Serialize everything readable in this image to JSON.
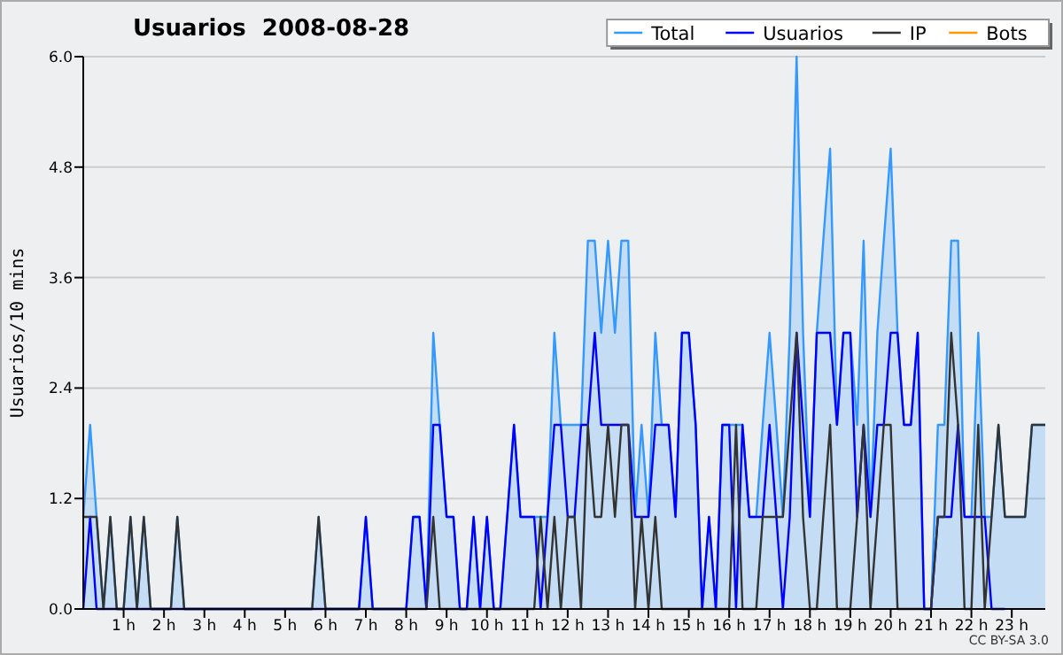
{
  "chart_data": {
    "type": "line",
    "title": "Usuarios  2008-08-28",
    "ylabel": "Usuarios/10 mins",
    "annotations": [
      "CC BY-SA 3.0"
    ],
    "x": [
      0,
      0.17,
      0.33,
      0.5,
      0.67,
      0.83,
      1,
      1.17,
      1.33,
      1.5,
      1.67,
      1.83,
      2,
      2.17,
      2.33,
      2.5,
      2.67,
      2.83,
      3,
      3.17,
      3.33,
      3.5,
      3.67,
      3.83,
      4,
      4.17,
      4.33,
      4.5,
      4.67,
      4.83,
      5,
      5.17,
      5.33,
      5.5,
      5.67,
      5.83,
      6,
      6.17,
      6.33,
      6.5,
      6.67,
      6.83,
      7,
      7.17,
      7.33,
      7.5,
      7.67,
      7.83,
      8,
      8.17,
      8.33,
      8.5,
      8.67,
      8.83,
      9,
      9.17,
      9.33,
      9.5,
      9.67,
      9.83,
      10,
      10.17,
      10.33,
      10.5,
      10.67,
      10.83,
      11,
      11.17,
      11.33,
      11.5,
      11.67,
      11.83,
      12,
      12.17,
      12.33,
      12.5,
      12.67,
      12.83,
      13,
      13.17,
      13.33,
      13.5,
      13.67,
      13.83,
      14,
      14.17,
      14.33,
      14.5,
      14.67,
      14.83,
      15,
      15.17,
      15.33,
      15.5,
      15.67,
      15.83,
      16,
      16.17,
      16.33,
      16.5,
      16.67,
      16.83,
      17,
      17.17,
      17.33,
      17.5,
      17.67,
      17.83,
      18,
      18.17,
      18.33,
      18.5,
      18.67,
      18.83,
      19,
      19.17,
      19.33,
      19.5,
      19.67,
      19.83,
      20,
      20.17,
      20.33,
      20.5,
      20.67,
      20.83,
      21,
      21.17,
      21.33,
      21.5,
      21.67,
      21.83,
      22,
      22.17,
      22.33,
      22.5,
      22.67,
      22.83,
      23,
      23.17,
      23.33,
      23.5,
      23.67,
      23.83
    ],
    "xlim": [
      0,
      23.83
    ],
    "xticks": [
      {
        "value": 1,
        "label": "1 h"
      },
      {
        "value": 2,
        "label": "2 h"
      },
      {
        "value": 3,
        "label": "3 h"
      },
      {
        "value": 4,
        "label": "4 h"
      },
      {
        "value": 5,
        "label": "5 h"
      },
      {
        "value": 6,
        "label": "6 h"
      },
      {
        "value": 7,
        "label": "7 h"
      },
      {
        "value": 8,
        "label": "8 h"
      },
      {
        "value": 9,
        "label": "9 h"
      },
      {
        "value": 10,
        "label": "10 h"
      },
      {
        "value": 11,
        "label": "11 h"
      },
      {
        "value": 12,
        "label": "12 h"
      },
      {
        "value": 13,
        "label": "13 h"
      },
      {
        "value": 14,
        "label": "14 h"
      },
      {
        "value": 15,
        "label": "15 h"
      },
      {
        "value": 16,
        "label": "16 h"
      },
      {
        "value": 17,
        "label": "17 h"
      },
      {
        "value": 18,
        "label": "18 h"
      },
      {
        "value": 19,
        "label": "19 h"
      },
      {
        "value": 20,
        "label": "20 h"
      },
      {
        "value": 21,
        "label": "21 h"
      },
      {
        "value": 22,
        "label": "22 h"
      },
      {
        "value": 23,
        "label": "23 h"
      }
    ],
    "ylim": [
      0,
      6
    ],
    "yticks": [
      {
        "value": 0,
        "label": "0.0"
      },
      1.2,
      2.4,
      3.6,
      4.8,
      {
        "value": 6,
        "label": "6.0"
      }
    ],
    "grid": "y",
    "legend": "top right",
    "marker": "none",
    "line_style": "solid",
    "series": [
      {
        "name": "Total",
        "type": "area",
        "color": "#3399ff",
        "values": [
          1,
          2,
          1,
          0,
          1,
          0,
          0,
          1,
          0,
          1,
          0,
          0,
          0,
          0,
          1,
          0,
          0,
          0,
          0,
          0,
          0,
          0,
          0,
          0,
          0,
          0,
          0,
          0,
          0,
          0,
          0,
          0,
          0,
          0,
          0,
          1,
          0,
          0,
          0,
          0,
          0,
          0,
          1,
          0,
          0,
          0,
          0,
          0,
          0,
          1,
          1,
          0,
          3,
          2,
          1,
          1,
          0,
          0,
          1,
          0,
          1,
          0,
          0,
          1,
          2,
          1,
          1,
          1,
          1,
          1,
          3,
          2,
          2,
          2,
          2,
          4,
          4,
          3,
          4,
          3,
          4,
          4,
          1,
          2,
          1,
          3,
          2,
          2,
          1,
          3,
          3,
          2,
          0,
          1,
          0,
          2,
          2,
          2,
          2,
          1,
          1,
          2,
          3,
          2,
          1,
          3,
          6,
          3,
          1,
          3,
          4,
          5,
          2,
          3,
          3,
          2,
          4,
          1,
          3,
          4,
          5,
          3,
          2,
          2,
          3,
          0,
          0,
          2,
          2,
          4,
          4,
          1,
          1,
          3,
          1,
          1,
          2,
          1,
          1,
          1,
          1,
          2,
          2,
          2
        ]
      },
      {
        "name": "Usuarios",
        "color": "#0000ff",
        "values": [
          0,
          1,
          0,
          0,
          0,
          0,
          0,
          0,
          0,
          0,
          0,
          0,
          0,
          0,
          0,
          0,
          0,
          0,
          0,
          0,
          0,
          0,
          0,
          0,
          0,
          0,
          0,
          0,
          0,
          0,
          0,
          0,
          0,
          0,
          0,
          0,
          0,
          0,
          0,
          0,
          0,
          0,
          1,
          0,
          0,
          0,
          0,
          0,
          0,
          1,
          1,
          0,
          2,
          2,
          1,
          1,
          0,
          0,
          1,
          0,
          1,
          0,
          0,
          1,
          2,
          1,
          1,
          1,
          0,
          1,
          2,
          2,
          1,
          1,
          2,
          2,
          3,
          2,
          2,
          2,
          2,
          2,
          1,
          1,
          1,
          2,
          2,
          2,
          1,
          3,
          3,
          2,
          0,
          1,
          0,
          2,
          2,
          0,
          2,
          1,
          1,
          1,
          2,
          1,
          0,
          1,
          3,
          2,
          1,
          3,
          3,
          3,
          2,
          3,
          3,
          1,
          2,
          1,
          2,
          2,
          3,
          3,
          2,
          2,
          3,
          0,
          0,
          1,
          1,
          1,
          2,
          1,
          1,
          1,
          1,
          0,
          0,
          0,
          null,
          null,
          null,
          null,
          null,
          null
        ]
      },
      {
        "name": "IP",
        "color": "#333333",
        "values": [
          1,
          1,
          1,
          0,
          1,
          0,
          0,
          1,
          0,
          1,
          0,
          0,
          0,
          0,
          1,
          0,
          0,
          0,
          0,
          0,
          0,
          0,
          0,
          0,
          0,
          0,
          0,
          0,
          0,
          0,
          0,
          0,
          0,
          0,
          0,
          1,
          0,
          0,
          0,
          0,
          0,
          0,
          0,
          0,
          0,
          0,
          0,
          0,
          0,
          0,
          0,
          0,
          1,
          0,
          0,
          0,
          0,
          0,
          0,
          0,
          0,
          0,
          0,
          0,
          0,
          0,
          0,
          0,
          1,
          0,
          1,
          0,
          1,
          1,
          0,
          2,
          1,
          1,
          2,
          1,
          2,
          2,
          0,
          1,
          0,
          1,
          0,
          0,
          0,
          0,
          0,
          0,
          0,
          0,
          0,
          0,
          0,
          2,
          0,
          0,
          0,
          1,
          1,
          1,
          1,
          2,
          3,
          1,
          0,
          0,
          1,
          2,
          0,
          0,
          0,
          1,
          2,
          0,
          1,
          2,
          2,
          0,
          0,
          0,
          0,
          0,
          0,
          1,
          1,
          3,
          2,
          0,
          0,
          2,
          0,
          1,
          2,
          1,
          1,
          1,
          1,
          2,
          2,
          2
        ]
      },
      {
        "name": "Bots",
        "color": "#ff9900",
        "values": [
          null,
          null,
          null,
          null,
          null,
          null,
          null,
          null,
          null,
          null,
          null,
          null,
          null,
          null,
          null,
          null,
          null,
          null,
          null,
          null,
          null,
          null,
          null,
          null,
          null,
          null,
          null,
          null,
          null,
          null,
          null,
          null,
          null,
          null,
          null,
          null,
          null,
          null,
          null,
          null,
          null,
          null,
          null,
          null,
          null,
          null,
          null,
          null,
          null,
          null,
          null,
          null,
          null,
          null,
          null,
          null,
          null,
          null,
          null,
          null,
          null,
          null,
          null,
          null,
          null,
          null,
          null,
          null,
          null,
          null,
          null,
          null,
          null,
          null,
          null,
          null,
          null,
          null,
          null,
          null,
          null,
          null,
          null,
          null,
          null,
          null,
          null,
          null,
          null,
          null,
          null,
          null,
          null,
          null,
          null,
          null,
          null,
          null,
          null,
          null,
          null,
          null,
          null,
          null,
          null,
          null,
          null,
          null,
          null,
          null,
          null,
          null,
          null,
          null,
          null,
          null,
          null,
          null,
          null,
          null,
          null,
          null,
          null,
          null,
          null,
          null,
          null,
          null,
          null,
          null,
          null,
          null,
          null,
          null,
          null,
          null,
          null,
          null,
          null,
          null,
          null,
          null,
          null,
          null
        ]
      }
    ]
  }
}
